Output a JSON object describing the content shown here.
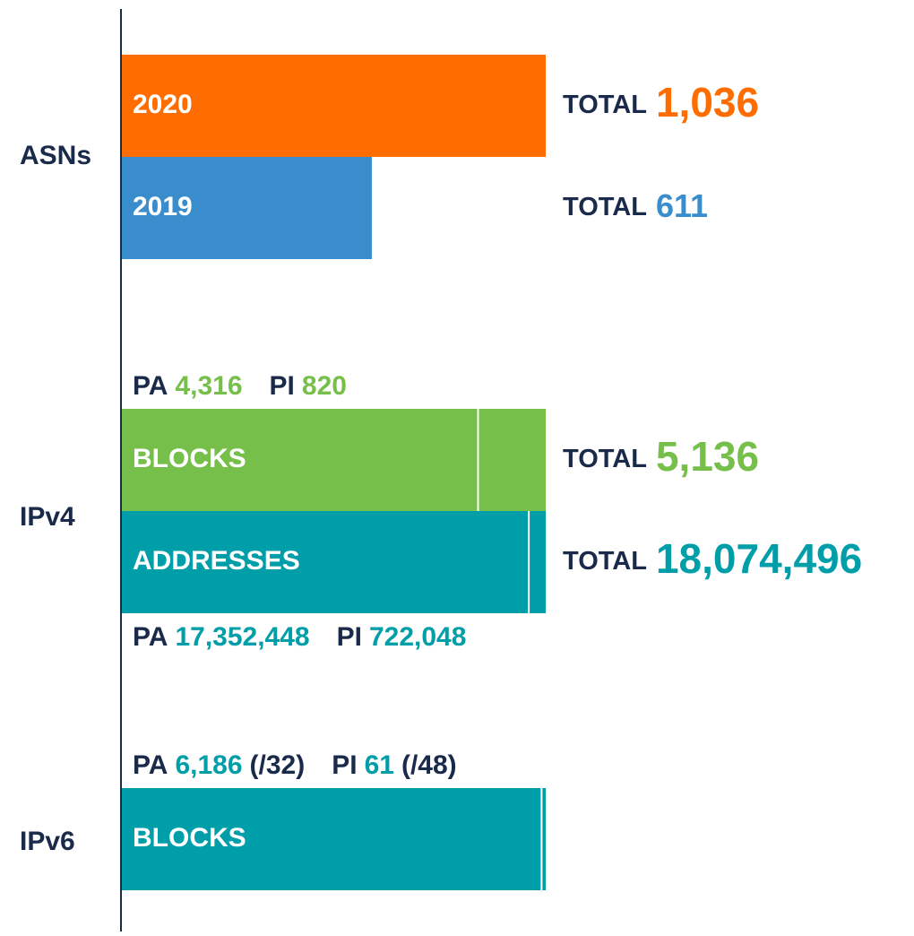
{
  "asns": {
    "label": "ASNs",
    "bars": [
      {
        "name": "2020",
        "color": "#ff6d00",
        "total": {
          "value": 1036,
          "label": "1,036"
        }
      },
      {
        "name": "2019",
        "color": "#3a8dcd",
        "total": {
          "value": 611,
          "label": "611"
        }
      }
    ]
  },
  "total_word": "TOTAL",
  "pa_word": "PA",
  "pi_word": "PI",
  "ipv4": {
    "label": "IPv4",
    "blocks": {
      "name": "BLOCKS",
      "color": "#76bf4b",
      "total": {
        "value": 5136,
        "label": "5,136"
      },
      "pa": {
        "value": 4316,
        "label": "4,316"
      },
      "pi": {
        "value": 820,
        "label": "820"
      }
    },
    "addresses": {
      "name": "ADDRESSES",
      "color": "#009ea8",
      "total": {
        "value": 18074496,
        "label": "18,074,496"
      },
      "pa": {
        "value": 17352448,
        "label": "17,352,448"
      },
      "pi": {
        "value": 722048,
        "label": "722,048"
      }
    }
  },
  "ipv6": {
    "label": "IPv6",
    "blocks": {
      "name": "BLOCKS",
      "color": "#009ea8",
      "pa": {
        "value": 6186,
        "label": "6,186"
      },
      "pa_unit": "(/32)",
      "pi": {
        "value": 61,
        "label": "61"
      },
      "pi_unit": "(/48)"
    }
  }
}
